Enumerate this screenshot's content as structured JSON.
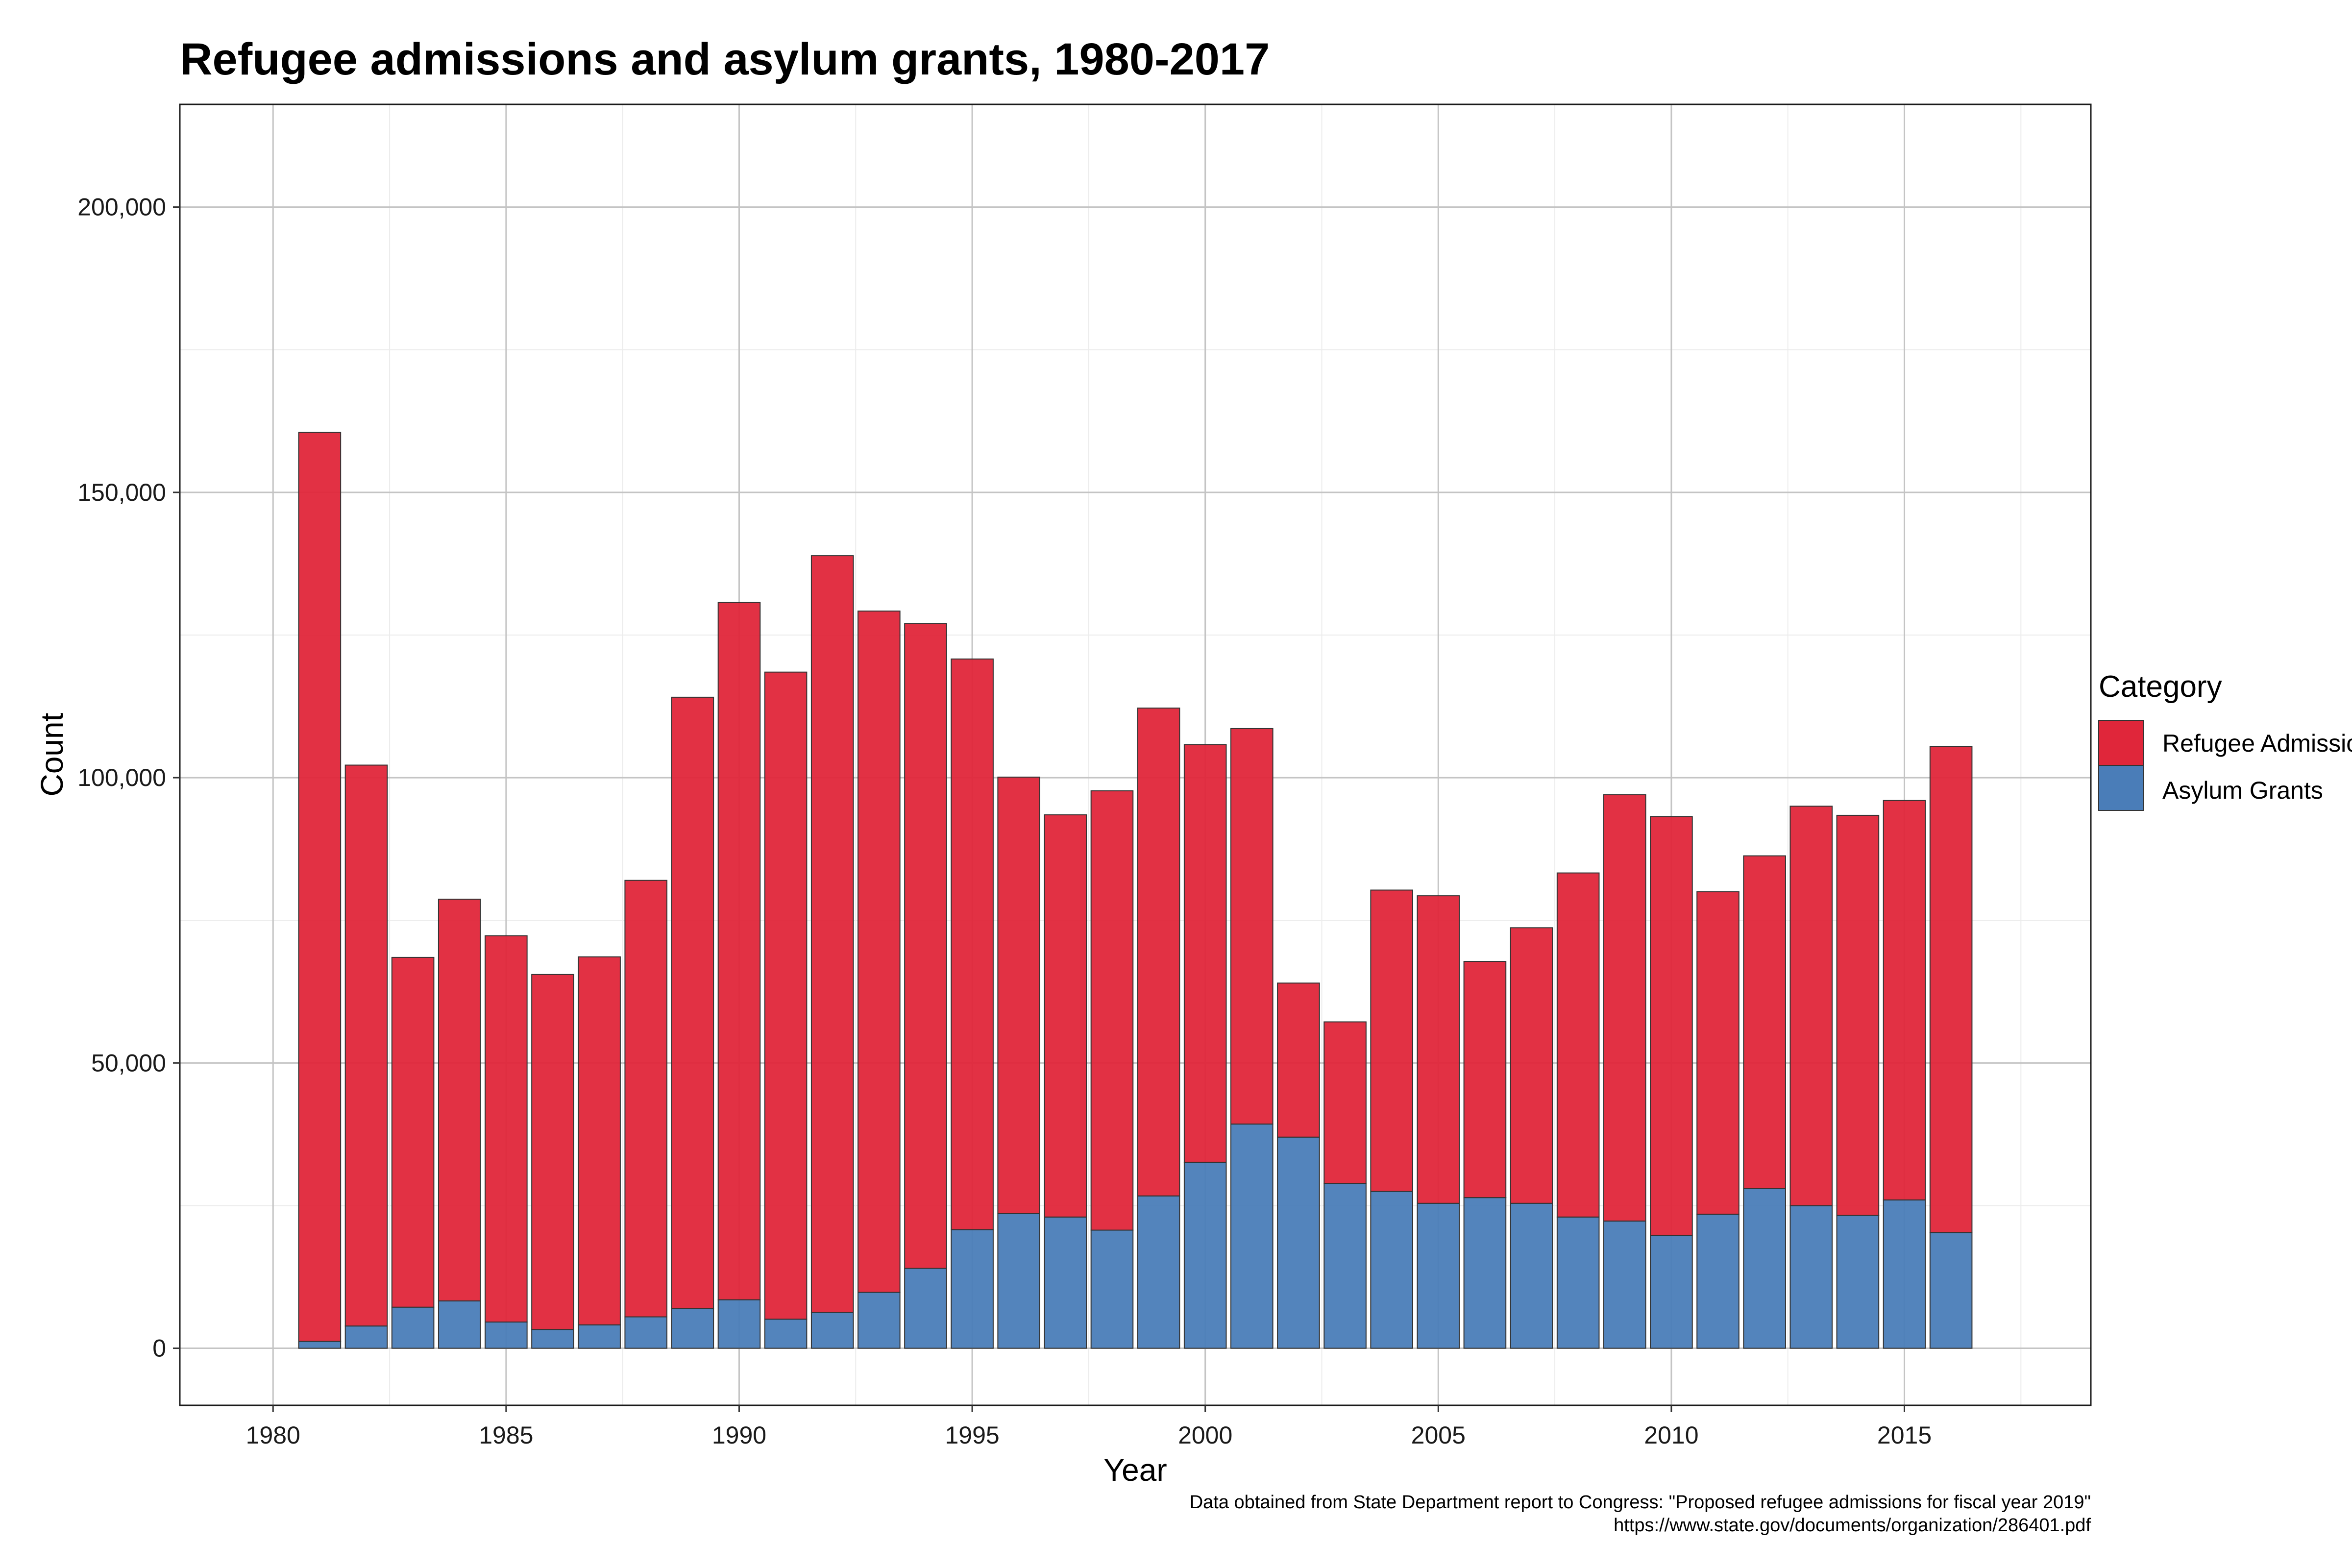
{
  "chart_data": {
    "type": "bar",
    "stacked": true,
    "title": "Refugee admissions and asylum grants, 1980-2017",
    "xlabel": "Year",
    "ylabel": "Count",
    "x_ticks": [
      "1980",
      "1985",
      "1990",
      "1995",
      "2000",
      "2005",
      "2010",
      "2015"
    ],
    "y_ticks": [
      "0",
      "50,000",
      "100,000",
      "150,000",
      "200,000"
    ],
    "xlim": [
      1978,
      2019
    ],
    "ylim": [
      -10000,
      218000
    ],
    "grid": true,
    "legend": {
      "title": "Category",
      "position": "right"
    },
    "categories": [
      1981,
      1982,
      1983,
      1984,
      1985,
      1986,
      1987,
      1988,
      1989,
      1990,
      1991,
      1992,
      1993,
      1994,
      1995,
      1996,
      1997,
      1998,
      1999,
      2000,
      2001,
      2002,
      2003,
      2004,
      2005,
      2006,
      2007,
      2008,
      2009,
      2010,
      2011,
      2012,
      2013,
      2014,
      2015,
      2016
    ],
    "series": [
      {
        "name": "Asylum Grants",
        "color": "#4a7db8",
        "values": [
          1200,
          3900,
          7200,
          8300,
          4600,
          3300,
          4100,
          5500,
          7000,
          8500,
          5100,
          6300,
          9800,
          14000,
          20800,
          23600,
          23000,
          20700,
          26700,
          32600,
          39300,
          37000,
          28900,
          27500,
          25400,
          26400,
          25400,
          23000,
          22300,
          19800,
          23500,
          28000,
          25000,
          23300,
          26000,
          20300
        ]
      },
      {
        "name": "Refugee Admissions",
        "color": "#e0263a",
        "values": [
          159300,
          98300,
          61300,
          70400,
          67700,
          62200,
          64500,
          76500,
          107100,
          122200,
          113400,
          132600,
          119400,
          113000,
          100000,
          76500,
          70500,
          77000,
          85500,
          73200,
          69300,
          27000,
          28300,
          52800,
          53900,
          41400,
          48300,
          60300,
          74700,
          73400,
          56500,
          58300,
          70000,
          70100,
          70000,
          85200
        ]
      }
    ]
  },
  "caption": {
    "line1": "Data obtained from State Department report to Congress: \"Proposed refugee admissions for fiscal year 2019\"",
    "line2": "https://www.state.gov/documents/organization/286401.pdf"
  }
}
